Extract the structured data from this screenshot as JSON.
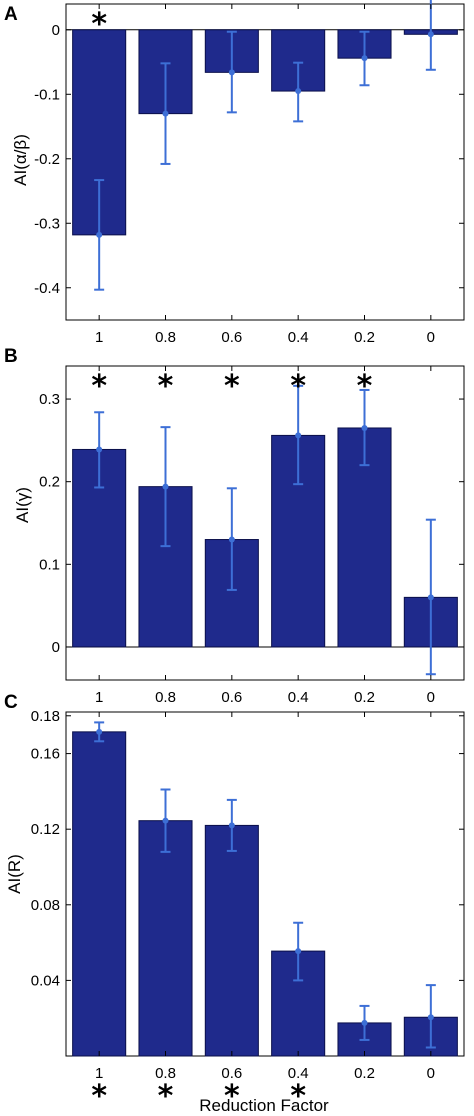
{
  "colors": {
    "bar": "#1f2a8c",
    "bar_edge": "#0a0f4a",
    "error": "#3d6fd6",
    "axis": "#000000"
  },
  "chart_data": [
    {
      "panel": "A",
      "type": "bar",
      "ylabel": "AI(α/β)",
      "xlabel": "",
      "categories": [
        "1",
        "0.8",
        "0.6",
        "0.4",
        "0.2",
        "0"
      ],
      "values": [
        -0.318,
        -0.13,
        -0.066,
        -0.095,
        -0.044,
        -0.007
      ],
      "error_low": [
        -0.403,
        -0.208,
        -0.128,
        -0.142,
        -0.086,
        -0.062
      ],
      "error_high": [
        -0.233,
        -0.052,
        -0.003,
        -0.051,
        -0.003,
        0.05
      ],
      "significant": [
        true,
        false,
        false,
        false,
        false,
        false
      ],
      "star_position": "top",
      "ylim": [
        -0.45,
        0.04
      ],
      "yticks": [
        0,
        -0.1,
        -0.2,
        -0.3,
        -0.4
      ],
      "ytick_labels": [
        "0",
        "-0.1",
        "-0.2",
        "-0.3",
        "-0.4"
      ],
      "zero_line": true
    },
    {
      "panel": "B",
      "type": "bar",
      "ylabel": "AI(γ)",
      "xlabel": "",
      "categories": [
        "1",
        "0.8",
        "0.6",
        "0.4",
        "0.2",
        "0"
      ],
      "values": [
        0.239,
        0.194,
        0.13,
        0.256,
        0.265,
        0.06
      ],
      "error_low": [
        0.193,
        0.122,
        0.069,
        0.197,
        0.22,
        -0.033
      ],
      "error_high": [
        0.284,
        0.266,
        0.192,
        0.316,
        0.311,
        0.154
      ],
      "significant": [
        true,
        true,
        true,
        true,
        true,
        false
      ],
      "star_position": "top",
      "ylim": [
        -0.04,
        0.34
      ],
      "yticks": [
        0,
        0.1,
        0.2,
        0.3
      ],
      "ytick_labels": [
        "0",
        "0.1",
        "0.2",
        "0.3"
      ],
      "zero_line": true
    },
    {
      "panel": "C",
      "type": "bar",
      "ylabel": "AI(R)",
      "xlabel": "Reduction Factor",
      "categories": [
        "1",
        "0.8",
        "0.6",
        "0.4",
        "0.2",
        "0"
      ],
      "values": [
        0.1715,
        0.1245,
        0.122,
        0.0555,
        0.0175,
        0.0205
      ],
      "error_low": [
        0.1665,
        0.108,
        0.1085,
        0.04,
        0.0085,
        0.0045
      ],
      "error_high": [
        0.1765,
        0.141,
        0.1355,
        0.0705,
        0.0265,
        0.0375
      ],
      "significant": [
        true,
        true,
        true,
        true,
        false,
        false
      ],
      "star_position": "below",
      "ylim": [
        0,
        0.182
      ],
      "yticks": [
        0.04,
        0.08,
        0.12,
        0.16,
        0.18
      ],
      "ytick_labels": [
        "0.04",
        "0.08",
        "0.12",
        "0.16",
        "0.18"
      ],
      "zero_line": false
    }
  ],
  "star_symbol": "*"
}
